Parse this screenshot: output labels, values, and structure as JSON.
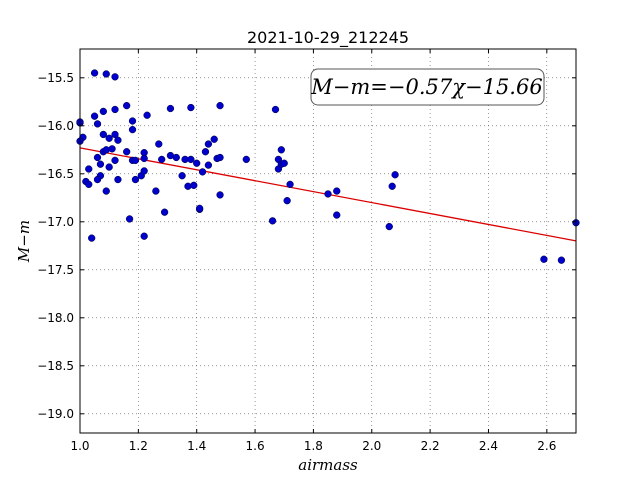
{
  "chart_data": {
    "type": "scatter",
    "title": "2021-10-29_212245",
    "xlabel": "airmass",
    "ylabel": "M−m",
    "xlim": [
      1.0,
      2.7
    ],
    "ylim": [
      -19.2,
      -15.2
    ],
    "y_inverted": true,
    "x_ticks": [
      1.0,
      1.2,
      1.4,
      1.6,
      1.8,
      2.0,
      2.2,
      2.4,
      2.6
    ],
    "x_tick_labels": [
      "1.0",
      "1.2",
      "1.4",
      "1.6",
      "1.8",
      "2.0",
      "2.2",
      "2.4",
      "2.6"
    ],
    "y_ticks": [
      -15.5,
      -16.0,
      -16.5,
      -17.0,
      -17.5,
      -18.0,
      -18.5,
      -19.0
    ],
    "y_tick_labels": [
      "−15.5",
      "−16.0",
      "−16.5",
      "−17.0",
      "−17.5",
      "−18.0",
      "−18.5",
      "−19.0"
    ],
    "grid": true,
    "annotation": "M−m=−0.57χ−15.66",
    "annotation_position": "top-right",
    "point_color": "#0000cc",
    "fit_color": "#dd0000",
    "fit_line": {
      "slope": -0.57,
      "intercept": -15.66
    },
    "x": [
      1.0,
      1.01,
      1.0,
      1.0,
      1.02,
      1.03,
      1.04,
      1.03,
      1.05,
      1.05,
      1.06,
      1.06,
      1.07,
      1.06,
      1.07,
      1.08,
      1.08,
      1.08,
      1.09,
      1.09,
      1.09,
      1.1,
      1.1,
      1.11,
      1.12,
      1.12,
      1.12,
      1.12,
      1.13,
      1.13,
      1.16,
      1.16,
      1.17,
      1.18,
      1.18,
      1.19,
      1.18,
      1.19,
      1.21,
      1.22,
      1.22,
      1.22,
      1.22,
      1.23,
      1.26,
      1.27,
      1.28,
      1.29,
      1.31,
      1.31,
      1.33,
      1.35,
      1.36,
      1.37,
      1.38,
      1.38,
      1.39,
      1.4,
      1.41,
      1.42,
      1.41,
      1.43,
      1.44,
      1.44,
      1.46,
      1.47,
      1.48,
      1.48,
      1.48,
      1.57,
      1.66,
      1.67,
      1.68,
      1.68,
      1.69,
      1.69,
      1.7,
      1.71,
      1.72,
      1.85,
      1.88,
      1.88,
      2.06,
      2.07,
      2.08,
      2.59,
      2.65,
      2.7
    ],
    "y": [
      -15.97,
      -16.12,
      -16.16,
      -15.96,
      -16.58,
      -16.45,
      -17.17,
      -16.61,
      -15.45,
      -15.9,
      -16.33,
      -15.98,
      -16.52,
      -16.56,
      -16.4,
      -15.85,
      -16.09,
      -16.27,
      -15.46,
      -16.68,
      -16.25,
      -16.13,
      -16.43,
      -16.24,
      -15.83,
      -16.09,
      -16.36,
      -15.49,
      -16.56,
      -16.15,
      -15.79,
      -16.27,
      -16.97,
      -15.95,
      -16.36,
      -16.56,
      -16.04,
      -16.36,
      -16.52,
      -16.47,
      -16.28,
      -16.34,
      -17.15,
      -15.89,
      -16.68,
      -16.19,
      -16.35,
      -16.9,
      -15.82,
      -16.31,
      -16.33,
      -16.52,
      -16.35,
      -16.63,
      -15.81,
      -16.35,
      -16.62,
      -16.39,
      -16.87,
      -16.48,
      -16.86,
      -16.27,
      -16.41,
      -16.19,
      -16.14,
      -16.34,
      -16.33,
      -16.72,
      -15.79,
      -16.35,
      -16.99,
      -15.83,
      -16.45,
      -16.35,
      -16.4,
      -16.25,
      -16.39,
      -16.78,
      -16.61,
      -16.71,
      -16.68,
      -16.93,
      -17.05,
      -16.63,
      -16.51,
      -17.39,
      -17.4,
      -17.01
    ]
  }
}
